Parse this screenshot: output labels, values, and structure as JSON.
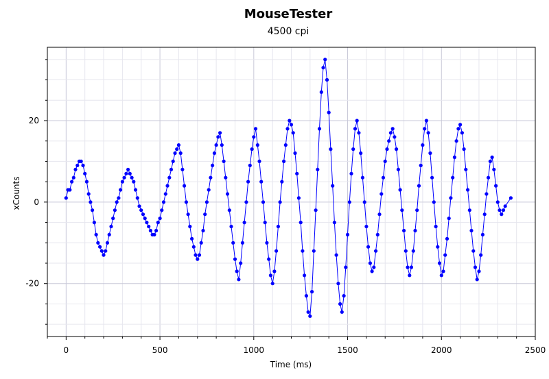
{
  "chart_data": {
    "type": "line",
    "title": "MouseTester",
    "subtitle": "4500 cpi",
    "xlabel": "Time (ms)",
    "ylabel": "xCounts",
    "xlim": [
      -100,
      2500
    ],
    "ylim": [
      -33,
      38
    ],
    "xticks": [
      0,
      500,
      1000,
      1500,
      2000,
      2500
    ],
    "yticks": [
      -20,
      0,
      20
    ],
    "grid": true,
    "series": [
      {
        "name": "xCounts",
        "color": "#0000ff",
        "marker": "circle",
        "points": [
          [
            0,
            1
          ],
          [
            10,
            3
          ],
          [
            20,
            3
          ],
          [
            30,
            5
          ],
          [
            40,
            6
          ],
          [
            50,
            8
          ],
          [
            60,
            9
          ],
          [
            70,
            10
          ],
          [
            80,
            10
          ],
          [
            90,
            9
          ],
          [
            100,
            7
          ],
          [
            110,
            5
          ],
          [
            120,
            2
          ],
          [
            130,
            0
          ],
          [
            140,
            -2
          ],
          [
            150,
            -5
          ],
          [
            160,
            -8
          ],
          [
            170,
            -10
          ],
          [
            180,
            -11
          ],
          [
            190,
            -12
          ],
          [
            200,
            -13
          ],
          [
            210,
            -12
          ],
          [
            220,
            -10
          ],
          [
            230,
            -8
          ],
          [
            240,
            -6
          ],
          [
            250,
            -4
          ],
          [
            260,
            -2
          ],
          [
            270,
            0
          ],
          [
            280,
            1
          ],
          [
            290,
            3
          ],
          [
            300,
            5
          ],
          [
            310,
            6
          ],
          [
            320,
            7
          ],
          [
            330,
            8
          ],
          [
            340,
            7
          ],
          [
            350,
            6
          ],
          [
            360,
            5
          ],
          [
            370,
            3
          ],
          [
            380,
            1
          ],
          [
            390,
            -1
          ],
          [
            400,
            -2
          ],
          [
            410,
            -3
          ],
          [
            420,
            -4
          ],
          [
            430,
            -5
          ],
          [
            440,
            -6
          ],
          [
            450,
            -7
          ],
          [
            460,
            -8
          ],
          [
            470,
            -8
          ],
          [
            480,
            -7
          ],
          [
            490,
            -5
          ],
          [
            500,
            -4
          ],
          [
            510,
            -2
          ],
          [
            520,
            0
          ],
          [
            530,
            2
          ],
          [
            540,
            4
          ],
          [
            550,
            6
          ],
          [
            560,
            8
          ],
          [
            570,
            10
          ],
          [
            580,
            12
          ],
          [
            590,
            13
          ],
          [
            600,
            14
          ],
          [
            610,
            12
          ],
          [
            620,
            8
          ],
          [
            630,
            4
          ],
          [
            640,
            0
          ],
          [
            650,
            -3
          ],
          [
            660,
            -6
          ],
          [
            670,
            -9
          ],
          [
            680,
            -11
          ],
          [
            690,
            -13
          ],
          [
            700,
            -14
          ],
          [
            710,
            -13
          ],
          [
            720,
            -10
          ],
          [
            730,
            -7
          ],
          [
            740,
            -3
          ],
          [
            750,
            0
          ],
          [
            760,
            3
          ],
          [
            770,
            6
          ],
          [
            780,
            9
          ],
          [
            790,
            12
          ],
          [
            800,
            14
          ],
          [
            810,
            16
          ],
          [
            820,
            17
          ],
          [
            830,
            14
          ],
          [
            840,
            10
          ],
          [
            850,
            6
          ],
          [
            860,
            2
          ],
          [
            870,
            -2
          ],
          [
            880,
            -6
          ],
          [
            890,
            -10
          ],
          [
            900,
            -14
          ],
          [
            910,
            -17
          ],
          [
            920,
            -19
          ],
          [
            930,
            -15
          ],
          [
            940,
            -10
          ],
          [
            950,
            -5
          ],
          [
            960,
            0
          ],
          [
            970,
            5
          ],
          [
            980,
            9
          ],
          [
            990,
            13
          ],
          [
            1000,
            16
          ],
          [
            1010,
            18
          ],
          [
            1020,
            14
          ],
          [
            1030,
            10
          ],
          [
            1040,
            5
          ],
          [
            1050,
            0
          ],
          [
            1060,
            -5
          ],
          [
            1070,
            -10
          ],
          [
            1080,
            -14
          ],
          [
            1090,
            -18
          ],
          [
            1100,
            -20
          ],
          [
            1110,
            -17
          ],
          [
            1120,
            -12
          ],
          [
            1130,
            -6
          ],
          [
            1140,
            0
          ],
          [
            1150,
            5
          ],
          [
            1160,
            10
          ],
          [
            1170,
            14
          ],
          [
            1180,
            18
          ],
          [
            1190,
            20
          ],
          [
            1200,
            19
          ],
          [
            1210,
            17
          ],
          [
            1220,
            12
          ],
          [
            1230,
            7
          ],
          [
            1240,
            1
          ],
          [
            1250,
            -5
          ],
          [
            1260,
            -12
          ],
          [
            1270,
            -18
          ],
          [
            1280,
            -23
          ],
          [
            1290,
            -27
          ],
          [
            1300,
            -28
          ],
          [
            1310,
            -22
          ],
          [
            1320,
            -12
          ],
          [
            1330,
            -2
          ],
          [
            1340,
            8
          ],
          [
            1350,
            18
          ],
          [
            1360,
            27
          ],
          [
            1370,
            33
          ],
          [
            1380,
            35
          ],
          [
            1390,
            30
          ],
          [
            1400,
            22
          ],
          [
            1410,
            13
          ],
          [
            1420,
            4
          ],
          [
            1430,
            -5
          ],
          [
            1440,
            -13
          ],
          [
            1450,
            -20
          ],
          [
            1460,
            -25
          ],
          [
            1470,
            -27
          ],
          [
            1480,
            -23
          ],
          [
            1490,
            -16
          ],
          [
            1500,
            -8
          ],
          [
            1510,
            0
          ],
          [
            1520,
            7
          ],
          [
            1530,
            13
          ],
          [
            1540,
            18
          ],
          [
            1550,
            20
          ],
          [
            1560,
            17
          ],
          [
            1570,
            12
          ],
          [
            1580,
            6
          ],
          [
            1590,
            0
          ],
          [
            1600,
            -6
          ],
          [
            1610,
            -11
          ],
          [
            1620,
            -15
          ],
          [
            1630,
            -17
          ],
          [
            1640,
            -16
          ],
          [
            1650,
            -12
          ],
          [
            1660,
            -8
          ],
          [
            1670,
            -3
          ],
          [
            1680,
            2
          ],
          [
            1690,
            6
          ],
          [
            1700,
            10
          ],
          [
            1710,
            13
          ],
          [
            1720,
            15
          ],
          [
            1730,
            17
          ],
          [
            1740,
            18
          ],
          [
            1750,
            16
          ],
          [
            1760,
            13
          ],
          [
            1770,
            8
          ],
          [
            1780,
            3
          ],
          [
            1790,
            -2
          ],
          [
            1800,
            -7
          ],
          [
            1810,
            -12
          ],
          [
            1820,
            -16
          ],
          [
            1830,
            -18
          ],
          [
            1840,
            -16
          ],
          [
            1850,
            -12
          ],
          [
            1860,
            -7
          ],
          [
            1870,
            -2
          ],
          [
            1880,
            4
          ],
          [
            1890,
            9
          ],
          [
            1900,
            14
          ],
          [
            1910,
            18
          ],
          [
            1920,
            20
          ],
          [
            1930,
            17
          ],
          [
            1940,
            12
          ],
          [
            1950,
            6
          ],
          [
            1960,
            0
          ],
          [
            1970,
            -6
          ],
          [
            1980,
            -11
          ],
          [
            1990,
            -15
          ],
          [
            2000,
            -18
          ],
          [
            2010,
            -17
          ],
          [
            2020,
            -13
          ],
          [
            2030,
            -9
          ],
          [
            2040,
            -4
          ],
          [
            2050,
            1
          ],
          [
            2060,
            6
          ],
          [
            2070,
            11
          ],
          [
            2080,
            15
          ],
          [
            2090,
            18
          ],
          [
            2100,
            19
          ],
          [
            2110,
            17
          ],
          [
            2120,
            13
          ],
          [
            2130,
            8
          ],
          [
            2140,
            3
          ],
          [
            2150,
            -2
          ],
          [
            2160,
            -7
          ],
          [
            2170,
            -12
          ],
          [
            2180,
            -16
          ],
          [
            2190,
            -19
          ],
          [
            2200,
            -17
          ],
          [
            2210,
            -13
          ],
          [
            2220,
            -8
          ],
          [
            2230,
            -3
          ],
          [
            2240,
            2
          ],
          [
            2250,
            6
          ],
          [
            2260,
            10
          ],
          [
            2270,
            11
          ],
          [
            2280,
            8
          ],
          [
            2290,
            4
          ],
          [
            2300,
            0
          ],
          [
            2310,
            -2
          ],
          [
            2320,
            -3
          ],
          [
            2330,
            -2
          ],
          [
            2340,
            -1
          ],
          [
            2370,
            1
          ]
        ]
      }
    ]
  }
}
